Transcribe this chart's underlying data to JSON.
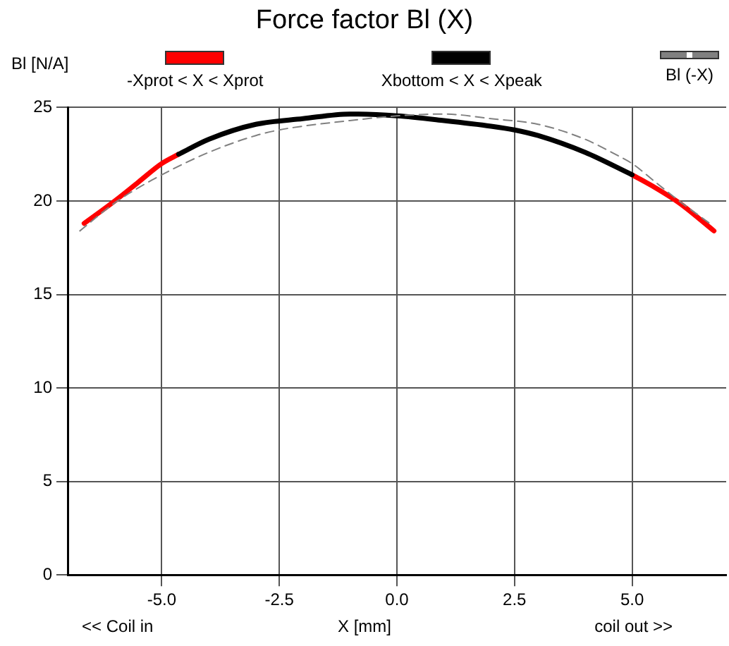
{
  "chart_data": {
    "type": "line",
    "title": "Force factor Bl (X)",
    "xlabel": "X [mm]",
    "ylabel": "Bl [N/A]",
    "annotations": [
      "<< Coil in",
      "coil out >>"
    ],
    "series": [
      {
        "name": "-Xprot < X < Xprot",
        "color": "#ff0000",
        "x": [
          -6.65,
          -6,
          -5.5,
          -5,
          -4.64,
          -4,
          -3,
          -2,
          -1,
          0,
          1,
          2,
          2.5,
          3,
          4,
          5,
          5.5,
          6,
          6.74
        ],
        "values": [
          18.8,
          20.0,
          21.0,
          22.0,
          22.5,
          null,
          null,
          null,
          null,
          null,
          null,
          null,
          null,
          null,
          null,
          21.4,
          20.7,
          19.9,
          18.4
        ]
      },
      {
        "name": "Xbottom < X < Xpeak",
        "color": "#000000",
        "x": [
          -4.64,
          -4,
          -3,
          -2,
          -1,
          0,
          1,
          2,
          2.5,
          3,
          4,
          5
        ],
        "values": [
          22.5,
          23.3,
          24.1,
          24.4,
          24.65,
          24.55,
          24.3,
          24.0,
          23.8,
          23.5,
          22.6,
          21.4
        ]
      },
      {
        "name": "Bl (-X)",
        "color": "#808080",
        "line_style": "dashed",
        "x": [
          -6.74,
          -6,
          -5.5,
          -5,
          -4,
          -3,
          -2.5,
          -2,
          -1,
          0,
          1,
          2,
          3,
          4,
          4.64,
          5,
          5.5,
          6,
          6.65
        ],
        "values": [
          18.4,
          19.9,
          20.7,
          21.4,
          22.6,
          23.5,
          23.8,
          24.0,
          24.3,
          24.55,
          24.65,
          24.4,
          24.1,
          23.3,
          22.5,
          22.0,
          21.0,
          20.0,
          18.8
        ]
      }
    ],
    "xlim": [
      -7,
      7
    ],
    "xticks": [
      {
        "value": -5,
        "label": "-5.0"
      },
      {
        "value": -2.5,
        "label": "-2.5"
      },
      {
        "value": 0,
        "label": "0.0"
      },
      {
        "value": 2.5,
        "label": "2.5"
      },
      {
        "value": 5,
        "label": "5.0"
      }
    ],
    "ylim": [
      0,
      25
    ],
    "yticks": [
      0,
      5,
      10,
      15,
      20,
      25
    ],
    "grid": true,
    "legend": "top",
    "marker": "none"
  }
}
